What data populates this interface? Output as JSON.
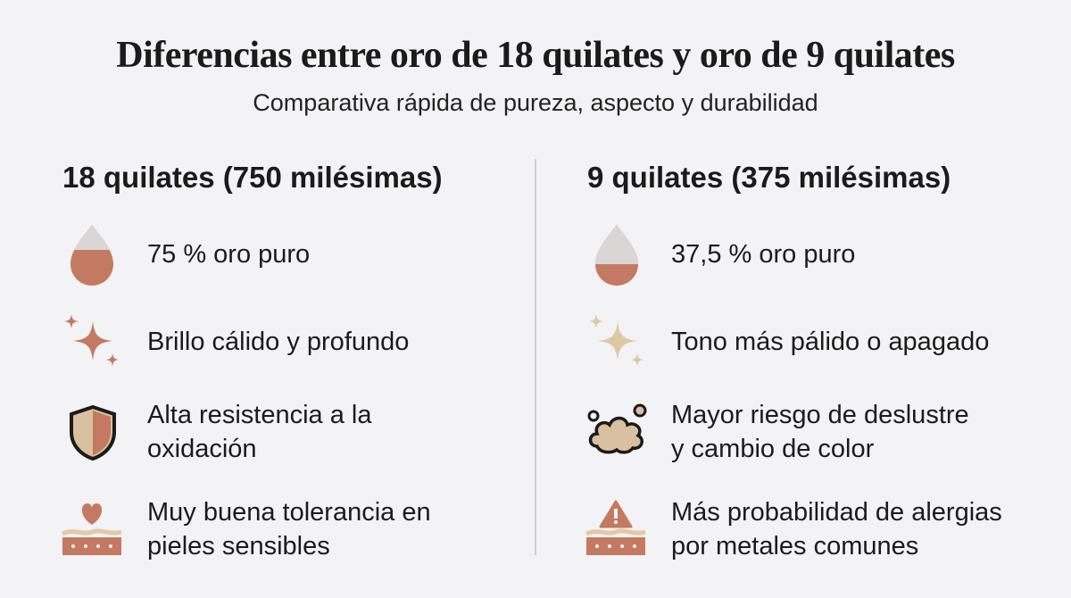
{
  "title": "Diferencias entre oro de 18 quilates y oro de 9 quilates",
  "subtitle": "Comparativa rápida de pureza, aspecto y durabilidad",
  "columns": [
    {
      "heading": "18 quilates (750 milésimas)",
      "items": [
        {
          "lines": [
            "75 % oro puro"
          ]
        },
        {
          "lines": [
            "Brillo cálido y profundo"
          ]
        },
        {
          "lines": [
            "Alta resistencia a la",
            "oxidación"
          ]
        },
        {
          "lines": [
            "Muy buena tolerancia en",
            "pieles sensibles"
          ]
        }
      ]
    },
    {
      "heading": "9 quilates (375 milésimas)",
      "items": [
        {
          "lines": [
            "37,5 % oro puro"
          ]
        },
        {
          "lines": [
            "Tono más pálido o apagado"
          ]
        },
        {
          "lines": [
            "Mayor riesgo de deslustre",
            "y cambio de color"
          ]
        },
        {
          "lines": [
            "Más probabilidad de alergias",
            "por metales comunes"
          ]
        }
      ]
    }
  ]
}
